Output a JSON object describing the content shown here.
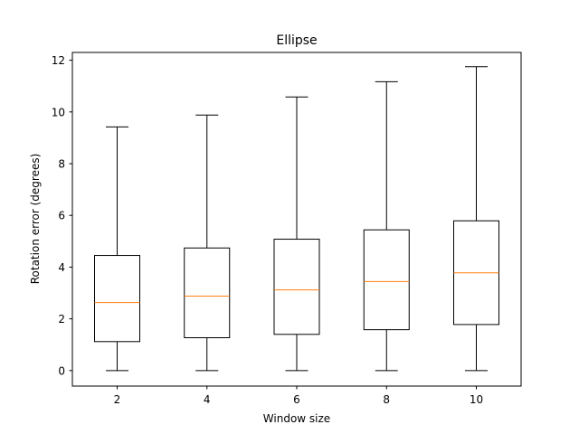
{
  "chart_data": {
    "type": "box",
    "title": "Ellipse",
    "xlabel": "Window size",
    "ylabel": "Rotation error (degrees)",
    "ylim": [
      -0.6,
      12.3
    ],
    "yticks": [
      0,
      2,
      4,
      6,
      8,
      10,
      12
    ],
    "grid": false,
    "categories": [
      "2",
      "4",
      "6",
      "8",
      "10"
    ],
    "boxes": [
      {
        "min": 0,
        "q1": 1.12,
        "median": 2.63,
        "q3": 4.45,
        "max": 9.42
      },
      {
        "min": 0,
        "q1": 1.27,
        "median": 2.88,
        "q3": 4.74,
        "max": 9.88
      },
      {
        "min": 0,
        "q1": 1.4,
        "median": 3.12,
        "q3": 5.08,
        "max": 10.58
      },
      {
        "min": 0,
        "q1": 1.58,
        "median": 3.44,
        "q3": 5.44,
        "max": 11.17
      },
      {
        "min": 0,
        "q1": 1.78,
        "median": 3.78,
        "q3": 5.79,
        "max": 11.75
      }
    ],
    "colors": {
      "box": "#000000",
      "median": "#ff7f0e"
    }
  }
}
